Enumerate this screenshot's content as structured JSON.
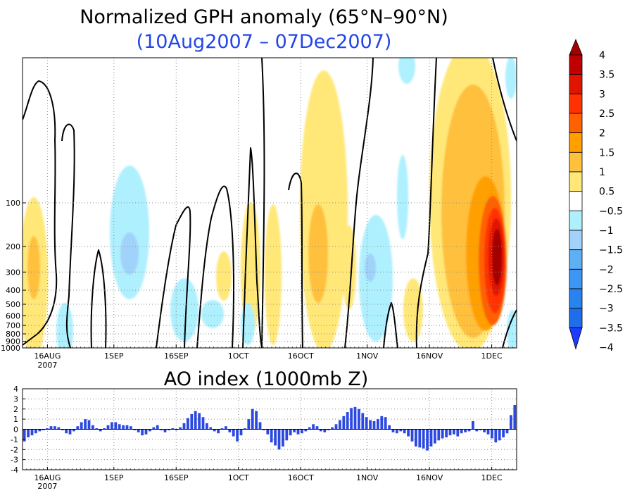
{
  "chart_data": [
    {
      "type": "heatmap",
      "title": "Normalized GPH anomaly (65°N–90°N)",
      "subtitle": "(10Aug2007 – 07Dec2007)",
      "x_range": [
        "2007-08-10",
        "2007-12-07"
      ],
      "x_ticks": [
        {
          "date": "2007-08-16",
          "label": "16AUG",
          "sublabel": "2007"
        },
        {
          "date": "2007-09-01",
          "label": "1SEP",
          "sublabel": ""
        },
        {
          "date": "2007-09-16",
          "label": "16SEP",
          "sublabel": ""
        },
        {
          "date": "2007-10-01",
          "label": "1OCT",
          "sublabel": ""
        },
        {
          "date": "2007-10-16",
          "label": "16OCT",
          "sublabel": ""
        },
        {
          "date": "2007-11-01",
          "label": "1NOV",
          "sublabel": ""
        },
        {
          "date": "2007-11-16",
          "label": "16NOV",
          "sublabel": ""
        },
        {
          "date": "2007-12-01",
          "label": "1DEC",
          "sublabel": ""
        }
      ],
      "y_scale": "log",
      "y_direction": "pressure, decreasing upward",
      "y_tick_labels": [
        1000,
        900,
        800,
        700,
        600,
        500,
        400,
        300,
        200,
        100
      ],
      "grid": "dotted",
      "colorbar": {
        "placement": "right",
        "levels": [
          -4,
          -3.5,
          -3,
          -2.5,
          -2,
          -1.5,
          -1,
          -0.5,
          0.5,
          1,
          1.5,
          2,
          2.5,
          3,
          3.5,
          4
        ],
        "labels": [
          "−4",
          "−3.5",
          "−3",
          "−2.5",
          "−2",
          "−1.5",
          "−1",
          "−0.5",
          "0.5",
          "1",
          "1.5",
          "2",
          "2.5",
          "3",
          "3.5",
          "4"
        ],
        "colors": [
          "#1e3cff",
          "#1e6eeb",
          "#2882f0",
          "#3c96f5",
          "#5faff5",
          "#a0d2fa",
          "#aff0ff",
          "#ffffff",
          "#ffe878",
          "#ffc03c",
          "#ffa000",
          "#ff6000",
          "#ff3200",
          "#e11400",
          "#c00000",
          "#a50000"
        ]
      }
    },
    {
      "type": "bar",
      "title": "AO index (1000mb Z)",
      "ylim": [
        -4,
        4
      ],
      "y_ticks": [
        -4,
        -3,
        -2,
        -1,
        0,
        1,
        2,
        3,
        4
      ],
      "x_range": [
        "2007-08-10",
        "2007-12-07"
      ],
      "x_ticks": [
        {
          "date": "2007-08-16",
          "label": "16AUG",
          "sublabel": "2007"
        },
        {
          "date": "2007-09-01",
          "label": "1SEP",
          "sublabel": ""
        },
        {
          "date": "2007-09-16",
          "label": "16SEP",
          "sublabel": ""
        },
        {
          "date": "2007-10-01",
          "label": "1OCT",
          "sublabel": ""
        },
        {
          "date": "2007-10-16",
          "label": "16OCT",
          "sublabel": ""
        },
        {
          "date": "2007-11-01",
          "label": "1NOV",
          "sublabel": ""
        },
        {
          "date": "2007-11-16",
          "label": "16NOV",
          "sublabel": ""
        },
        {
          "date": "2007-12-01",
          "label": "1DEC",
          "sublabel": ""
        }
      ],
      "bar_color": "#2b48e0",
      "grid": "dotted",
      "values": [
        -1.2,
        -0.8,
        -0.6,
        -0.4,
        -0.2,
        -0.1,
        0.1,
        0.3,
        0.3,
        0.2,
        -0.1,
        -0.4,
        -0.5,
        -0.2,
        0.3,
        0.7,
        1.0,
        0.9,
        0.4,
        0.1,
        -0.2,
        0.1,
        0.4,
        0.7,
        0.7,
        0.5,
        0.4,
        0.4,
        0.3,
        -0.1,
        -0.3,
        -0.6,
        -0.5,
        -0.2,
        0.2,
        0.4,
        -0.1,
        -0.3,
        -0.1,
        0.1,
        -0.1,
        0.2,
        0.6,
        1.1,
        1.5,
        1.8,
        1.6,
        1.2,
        0.6,
        0.2,
        -0.2,
        -0.4,
        0.1,
        0.3,
        -0.3,
        -0.7,
        -1.2,
        -0.6,
        0.1,
        1.0,
        2.0,
        1.8,
        0.7,
        -0.1,
        -0.5,
        -1.3,
        -1.6,
        -2.0,
        -1.7,
        -1.1,
        -0.6,
        -0.3,
        -0.5,
        -0.4,
        -0.2,
        0.2,
        0.5,
        0.3,
        -0.2,
        -0.3,
        -0.1,
        0.2,
        0.5,
        0.9,
        1.3,
        1.7,
        2.1,
        2.2,
        2.0,
        1.6,
        1.2,
        0.9,
        0.8,
        1.0,
        1.3,
        1.2,
        0.4,
        -0.3,
        -0.4,
        -0.2,
        -0.4,
        -0.7,
        -1.2,
        -1.7,
        -1.8,
        -1.9,
        -2.1,
        -1.7,
        -1.4,
        -1.1,
        -0.9,
        -0.8,
        -0.6,
        -0.5,
        -0.7,
        -0.4,
        -0.3,
        -0.2,
        0.8,
        -0.2,
        -0.1,
        -0.3,
        -0.5,
        -0.9,
        -1.3,
        -1.1,
        -0.8,
        -0.4,
        1.4,
        2.4
      ]
    }
  ]
}
